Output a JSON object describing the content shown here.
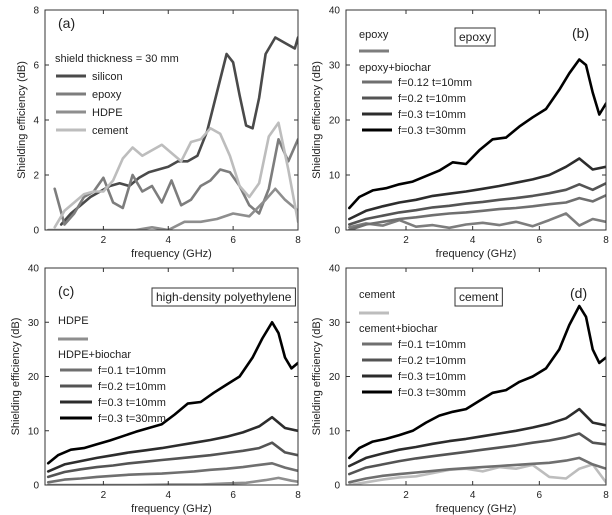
{
  "colors": {
    "silicon": "#4a4a4a",
    "epoxy": "#7d7d7d",
    "hdpe": "#8e8e8e",
    "cement": "#bdbdbd",
    "f012": "#6f6f6f",
    "f02": "#545454",
    "f03": "#2c2c2c",
    "f03t30": "#000000"
  },
  "chart_data": [
    {
      "type": "line",
      "panel": "(a)",
      "xlabel": "frequency (GHz)",
      "ylabel": "Shielding efficiency (dB)",
      "xlim": [
        0.2,
        8
      ],
      "ylim": [
        0,
        8
      ],
      "xticks": [
        2,
        4,
        6,
        8
      ],
      "yticks": [
        0,
        2,
        4,
        6,
        8
      ],
      "annotation": "shield thickness = 30 mm",
      "legend_position": "top-left",
      "series": [
        {
          "name": "silicon",
          "color_key": "silicon",
          "x": [
            0.7,
            1.0,
            1.3,
            1.6,
            1.9,
            2.2,
            2.5,
            2.8,
            3.1,
            3.4,
            3.7,
            4.0,
            4.3,
            4.6,
            4.9,
            5.2,
            5.5,
            5.8,
            6.0,
            6.2,
            6.4,
            6.6,
            6.8,
            7.0,
            7.3,
            7.6,
            7.9,
            8.0
          ],
          "y": [
            0.2,
            0.6,
            0.9,
            1.2,
            1.4,
            1.6,
            1.7,
            1.6,
            1.9,
            2.1,
            2.2,
            2.3,
            2.5,
            2.5,
            2.7,
            3.6,
            5.0,
            6.4,
            6.1,
            4.9,
            3.8,
            3.7,
            4.8,
            6.4,
            7.0,
            6.8,
            6.6,
            7.0
          ]
        },
        {
          "name": "epoxy",
          "color_key": "epoxy",
          "x": [
            0.5,
            0.8,
            1.1,
            1.4,
            1.7,
            2.0,
            2.3,
            2.6,
            2.9,
            3.2,
            3.5,
            3.8,
            4.1,
            4.4,
            4.7,
            5.0,
            5.3,
            5.6,
            5.9,
            6.2,
            6.5,
            6.8,
            7.1,
            7.4,
            7.7,
            8.0
          ],
          "y": [
            1.5,
            0.2,
            0.6,
            1.2,
            1.4,
            1.9,
            1.0,
            0.8,
            2.0,
            1.4,
            1.6,
            1.0,
            1.8,
            0.9,
            1.1,
            1.6,
            1.8,
            2.2,
            2.1,
            1.6,
            0.9,
            0.6,
            1.5,
            3.3,
            2.5,
            3.3
          ]
        },
        {
          "name": "HDPE",
          "color_key": "hdpe",
          "x": [
            0.3,
            0.6,
            1.0,
            1.5,
            2.0,
            2.5,
            3.0,
            3.5,
            4.0,
            4.5,
            5.0,
            5.5,
            6.0,
            6.5,
            7.0,
            7.3,
            7.6,
            8.0
          ],
          "y": [
            0.0,
            0.0,
            0.0,
            0.0,
            0.0,
            0.0,
            0.0,
            0.1,
            0.0,
            0.3,
            0.3,
            0.4,
            0.6,
            0.5,
            1.1,
            1.5,
            1.1,
            0.7
          ]
        },
        {
          "name": "cement",
          "color_key": "cement",
          "x": [
            0.5,
            0.8,
            1.1,
            1.4,
            1.7,
            2.0,
            2.3,
            2.6,
            2.9,
            3.2,
            3.5,
            3.8,
            4.1,
            4.4,
            4.7,
            5.0,
            5.3,
            5.6,
            5.9,
            6.2,
            6.5,
            6.8,
            7.1,
            7.4,
            7.7,
            8.0
          ],
          "y": [
            0.1,
            0.7,
            1.0,
            1.3,
            1.4,
            1.4,
            1.8,
            2.6,
            3.0,
            2.7,
            2.9,
            3.1,
            2.8,
            2.5,
            3.2,
            3.3,
            3.7,
            3.5,
            2.7,
            1.6,
            1.2,
            1.7,
            3.4,
            3.9,
            2.2,
            0.3
          ]
        }
      ]
    },
    {
      "type": "line",
      "panel": "(b)",
      "xlabel": "frequency (GHz)",
      "ylabel": "Shielding efficiency (dB)",
      "xlim": [
        0.2,
        8
      ],
      "ylim": [
        0,
        40
      ],
      "xticks": [
        2,
        4,
        6,
        8
      ],
      "yticks": [
        0,
        10,
        20,
        30,
        40
      ],
      "boxed_label": "epoxy",
      "legend_position": "top-left",
      "legend_headers": [
        "epoxy",
        "epoxy+biochar"
      ],
      "series": [
        {
          "name": "",
          "color_key": "epoxy",
          "x": [
            0.3,
            0.8,
            1.3,
            1.8,
            2.3,
            2.8,
            3.3,
            3.8,
            4.3,
            4.8,
            5.3,
            5.8,
            6.3,
            6.8,
            7.2,
            7.6,
            8.0
          ],
          "y": [
            0.5,
            1.2,
            0.8,
            1.8,
            0.6,
            0.9,
            0.4,
            1.0,
            1.3,
            0.9,
            1.5,
            0.7,
            1.8,
            3.0,
            0.8,
            2.0,
            1.5
          ]
        },
        {
          "name": "f=0.12 t=10mm",
          "color_key": "f012",
          "x": [
            0.3,
            0.8,
            1.3,
            1.8,
            2.3,
            2.8,
            3.3,
            3.8,
            4.3,
            4.8,
            5.3,
            5.8,
            6.3,
            6.8,
            7.2,
            7.6,
            8.0
          ],
          "y": [
            0.0,
            1.0,
            1.5,
            2.0,
            2.3,
            2.7,
            3.0,
            3.2,
            3.5,
            3.8,
            4.0,
            4.3,
            4.7,
            5.0,
            5.8,
            5.2,
            6.3
          ]
        },
        {
          "name": "f=0.2 t=10mm",
          "color_key": "f02",
          "x": [
            0.3,
            0.8,
            1.3,
            1.8,
            2.3,
            2.8,
            3.3,
            3.8,
            4.3,
            4.8,
            5.3,
            5.8,
            6.3,
            6.8,
            7.2,
            7.6,
            8.0
          ],
          "y": [
            1.0,
            2.0,
            2.6,
            3.2,
            3.6,
            4.1,
            4.4,
            4.8,
            5.1,
            5.5,
            5.8,
            6.2,
            6.7,
            7.3,
            8.3,
            7.3,
            8.5
          ]
        },
        {
          "name": "f=0.3 t=10mm",
          "color_key": "f03",
          "x": [
            0.3,
            0.8,
            1.3,
            1.8,
            2.3,
            2.8,
            3.3,
            3.8,
            4.3,
            4.8,
            5.3,
            5.8,
            6.3,
            6.8,
            7.2,
            7.6,
            8.0
          ],
          "y": [
            2.0,
            3.5,
            4.3,
            5.0,
            5.5,
            6.2,
            6.6,
            7.0,
            7.5,
            8.0,
            8.6,
            9.2,
            10.0,
            11.5,
            13.0,
            11.0,
            11.5
          ]
        },
        {
          "name": "f=0.3 t=30mm",
          "color_key": "f03t30",
          "x": [
            0.3,
            0.6,
            1.0,
            1.4,
            1.8,
            2.2,
            2.6,
            3.0,
            3.4,
            3.8,
            4.2,
            4.6,
            5.0,
            5.4,
            5.8,
            6.2,
            6.6,
            6.9,
            7.2,
            7.4,
            7.6,
            7.8,
            8.0
          ],
          "y": [
            4.0,
            6.0,
            7.2,
            7.6,
            8.3,
            8.8,
            9.8,
            10.8,
            12.3,
            12.0,
            14.5,
            16.5,
            16.8,
            18.8,
            20.5,
            22.0,
            25.5,
            28.5,
            31.0,
            30.0,
            25.0,
            21.0,
            23.0
          ]
        }
      ]
    },
    {
      "type": "line",
      "panel": "(c)",
      "xlabel": "frequency (GHz)",
      "ylabel": "Shielding efficiency (dB)",
      "xlim": [
        0.2,
        8
      ],
      "ylim": [
        0,
        40
      ],
      "xticks": [
        2,
        4,
        6,
        8
      ],
      "yticks": [
        0,
        10,
        20,
        30,
        40
      ],
      "boxed_label": "high-density polyethylene",
      "legend_position": "top-left",
      "legend_headers": [
        "HDPE",
        "HDPE+biochar"
      ],
      "series": [
        {
          "name": "",
          "color_key": "hdpe",
          "x": [
            0.3,
            1.0,
            2.0,
            3.0,
            4.0,
            5.0,
            5.8,
            6.4,
            7.0,
            7.4,
            7.8,
            8.0
          ],
          "y": [
            0.0,
            0.0,
            0.0,
            0.0,
            0.1,
            0.1,
            0.3,
            0.4,
            0.9,
            1.3,
            0.8,
            0.6
          ]
        },
        {
          "name": "f=0.1 t=10mm",
          "color_key": "f012",
          "x": [
            0.3,
            0.8,
            1.3,
            1.8,
            2.3,
            2.8,
            3.3,
            3.8,
            4.3,
            4.8,
            5.3,
            5.8,
            6.3,
            6.8,
            7.2,
            7.6,
            8.0
          ],
          "y": [
            0.5,
            1.0,
            1.2,
            1.5,
            1.7,
            1.9,
            2.0,
            2.1,
            2.3,
            2.5,
            2.8,
            3.0,
            3.3,
            3.7,
            4.0,
            3.2,
            2.6
          ]
        },
        {
          "name": "f=0.2 t=10mm",
          "color_key": "f02",
          "x": [
            0.3,
            0.8,
            1.3,
            1.8,
            2.3,
            2.8,
            3.3,
            3.8,
            4.3,
            4.8,
            5.3,
            5.8,
            6.3,
            6.8,
            7.2,
            7.6,
            8.0
          ],
          "y": [
            1.5,
            2.4,
            2.9,
            3.3,
            3.6,
            4.0,
            4.3,
            4.6,
            4.9,
            5.2,
            5.5,
            5.9,
            6.3,
            6.8,
            7.8,
            6.0,
            5.5
          ]
        },
        {
          "name": "f=0.3 t=10mm",
          "color_key": "f03",
          "x": [
            0.3,
            0.8,
            1.3,
            1.8,
            2.3,
            2.8,
            3.3,
            3.8,
            4.3,
            4.8,
            5.3,
            5.8,
            6.3,
            6.8,
            7.2,
            7.6,
            8.0
          ],
          "y": [
            2.5,
            3.8,
            4.4,
            5.0,
            5.5,
            6.0,
            6.4,
            6.8,
            7.3,
            7.8,
            8.3,
            8.9,
            9.7,
            10.8,
            12.5,
            10.5,
            10.0
          ]
        },
        {
          "name": "f=0.3 t=30mm",
          "color_key": "f03t30",
          "x": [
            0.3,
            0.6,
            1.0,
            1.4,
            1.8,
            2.2,
            2.6,
            3.0,
            3.4,
            3.8,
            4.2,
            4.6,
            5.0,
            5.4,
            5.8,
            6.2,
            6.6,
            6.9,
            7.2,
            7.4,
            7.6,
            7.8,
            8.0
          ],
          "y": [
            4.0,
            5.5,
            6.5,
            6.8,
            7.5,
            8.2,
            9.0,
            9.8,
            10.5,
            11.2,
            13.0,
            15.0,
            15.3,
            17.0,
            18.5,
            20.0,
            23.5,
            27.0,
            30.0,
            28.0,
            23.5,
            21.5,
            22.5
          ]
        }
      ]
    },
    {
      "type": "line",
      "panel": "(d)",
      "xlabel": "frequency (GHz)",
      "ylabel": "Shielding efficiency (dB)",
      "xlim": [
        0.2,
        8
      ],
      "ylim": [
        0,
        40
      ],
      "xticks": [
        2,
        4,
        6,
        8
      ],
      "yticks": [
        0,
        10,
        20,
        30,
        40
      ],
      "boxed_label": "cement",
      "legend_position": "top-left",
      "legend_headers": [
        "cement",
        "cement+biochar"
      ],
      "series": [
        {
          "name": "",
          "color_key": "cement",
          "x": [
            0.3,
            0.8,
            1.3,
            1.8,
            2.3,
            2.8,
            3.3,
            3.8,
            4.3,
            4.8,
            5.3,
            5.8,
            6.3,
            6.8,
            7.2,
            7.6,
            8.0
          ],
          "y": [
            0.0,
            0.5,
            1.0,
            1.4,
            1.6,
            2.2,
            2.8,
            3.0,
            2.5,
            3.3,
            3.0,
            3.7,
            1.5,
            1.2,
            3.0,
            3.8,
            0.5
          ]
        },
        {
          "name": "f=0.1 t=10mm",
          "color_key": "f012",
          "x": [
            0.3,
            0.8,
            1.3,
            1.8,
            2.3,
            2.8,
            3.3,
            3.8,
            4.3,
            4.8,
            5.3,
            5.8,
            6.3,
            6.8,
            7.2,
            7.6,
            8.0
          ],
          "y": [
            0.5,
            1.2,
            1.7,
            2.0,
            2.3,
            2.6,
            2.9,
            3.1,
            3.3,
            3.5,
            3.7,
            3.9,
            4.1,
            4.5,
            5.0,
            3.8,
            3.0
          ]
        },
        {
          "name": "f=0.2 t=10mm",
          "color_key": "f02",
          "x": [
            0.3,
            0.8,
            1.3,
            1.8,
            2.3,
            2.8,
            3.3,
            3.8,
            4.3,
            4.8,
            5.3,
            5.8,
            6.3,
            6.8,
            7.2,
            7.6,
            8.0
          ],
          "y": [
            2.0,
            3.2,
            3.8,
            4.4,
            4.9,
            5.3,
            5.7,
            6.1,
            6.5,
            6.9,
            7.3,
            7.8,
            8.2,
            8.8,
            9.5,
            7.8,
            7.5
          ]
        },
        {
          "name": "f=0.3 t=10mm",
          "color_key": "f03",
          "x": [
            0.3,
            0.8,
            1.3,
            1.8,
            2.3,
            2.8,
            3.3,
            3.8,
            4.3,
            4.8,
            5.3,
            5.8,
            6.3,
            6.8,
            7.2,
            7.6,
            8.0
          ],
          "y": [
            3.5,
            5.0,
            5.8,
            6.5,
            7.0,
            7.6,
            8.1,
            8.5,
            9.0,
            9.5,
            10.0,
            10.6,
            11.3,
            12.3,
            14.0,
            11.5,
            11.0
          ]
        },
        {
          "name": "f=0.3 t=30mm",
          "color_key": "f03t30",
          "x": [
            0.3,
            0.6,
            1.0,
            1.4,
            1.8,
            2.2,
            2.6,
            3.0,
            3.4,
            3.8,
            4.2,
            4.6,
            5.0,
            5.4,
            5.8,
            6.2,
            6.6,
            6.9,
            7.2,
            7.4,
            7.6,
            7.8,
            8.0
          ],
          "y": [
            5.0,
            6.8,
            8.0,
            8.5,
            9.2,
            10.0,
            11.5,
            12.8,
            13.5,
            14.0,
            15.5,
            17.0,
            17.5,
            19.0,
            20.0,
            21.5,
            25.0,
            29.5,
            33.0,
            31.0,
            25.0,
            22.5,
            23.5
          ]
        }
      ]
    }
  ]
}
